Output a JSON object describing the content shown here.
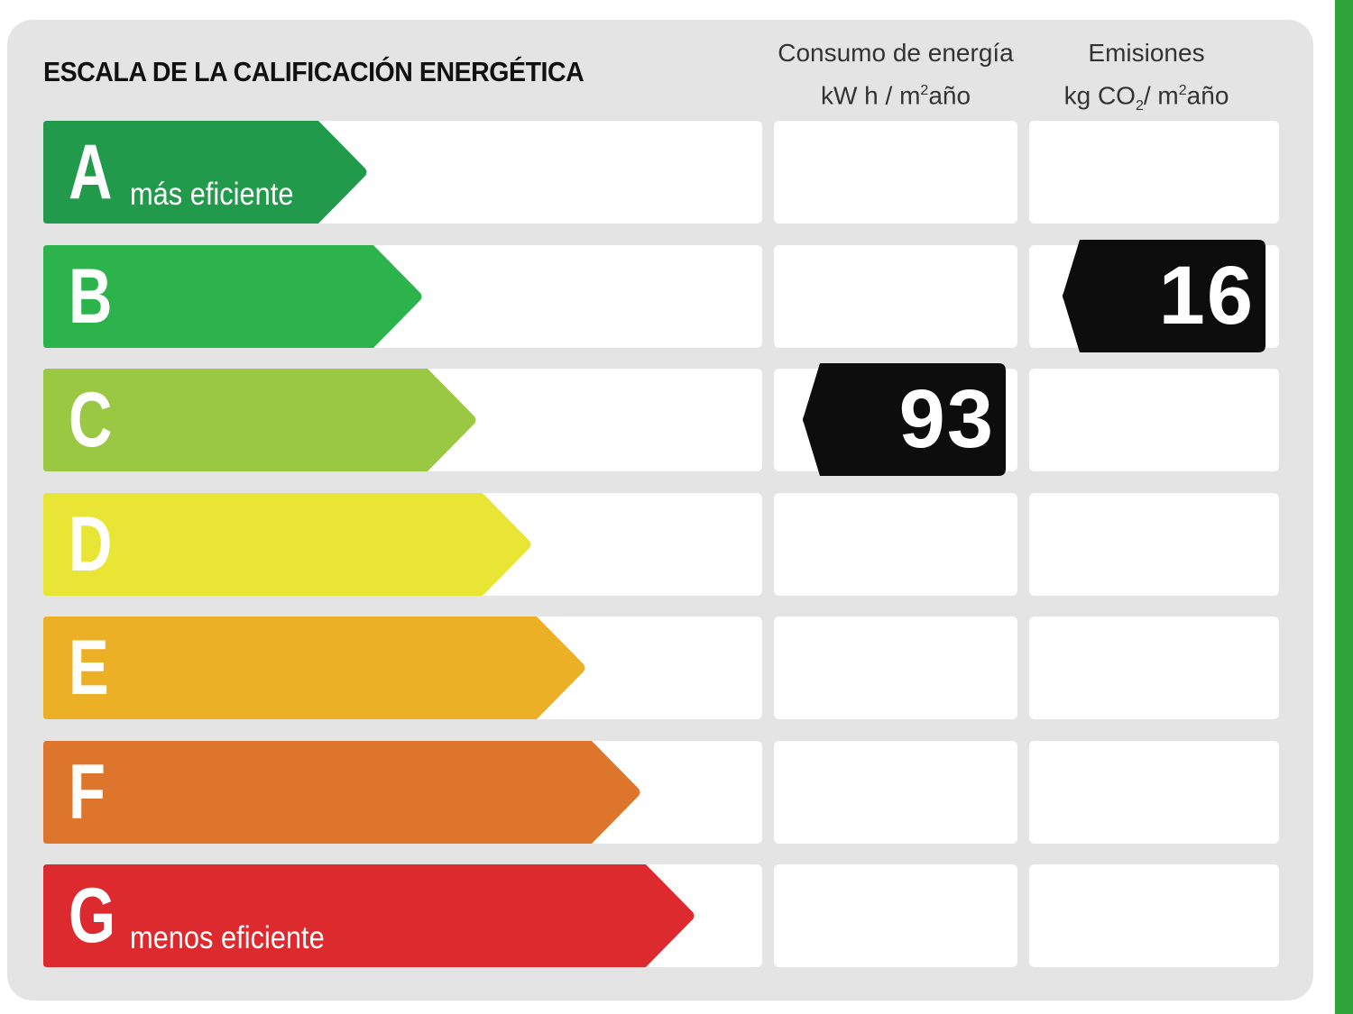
{
  "title": "ESCALA DE LA CALIFICACIÓN ENERGÉTICA",
  "columns": {
    "energy": {
      "line1": "Consumo de energía",
      "line2_a": "kW h / m",
      "line2_sup": "2",
      "line2_b": "año"
    },
    "emissions": {
      "line1": "Emisiones",
      "line2_a": "kg CO",
      "line2_sub": "2",
      "line2_b": "/ m",
      "line2_sup": "2",
      "line2_c": "año"
    }
  },
  "ratings": [
    {
      "letter": "A",
      "tagline": "más eficiente",
      "color": "#229a4c"
    },
    {
      "letter": "B",
      "tagline": "",
      "color": "#2db34c"
    },
    {
      "letter": "C",
      "tagline": "",
      "color": "#9ac843"
    },
    {
      "letter": "D",
      "tagline": "",
      "color": "#e8e534"
    },
    {
      "letter": "E",
      "tagline": "",
      "color": "#ecb027"
    },
    {
      "letter": "F",
      "tagline": "",
      "color": "#de752c"
    },
    {
      "letter": "G",
      "tagline": "menos eficiente",
      "color": "#dd2a2f"
    }
  ],
  "results": {
    "energy": {
      "value": "93",
      "rating": "C"
    },
    "emissions": {
      "value": "16",
      "rating": "B"
    }
  },
  "colors": {
    "panel": "#e4e4e4",
    "badge": "#0d0d0d",
    "accent_bar": "#2fa43a"
  }
}
